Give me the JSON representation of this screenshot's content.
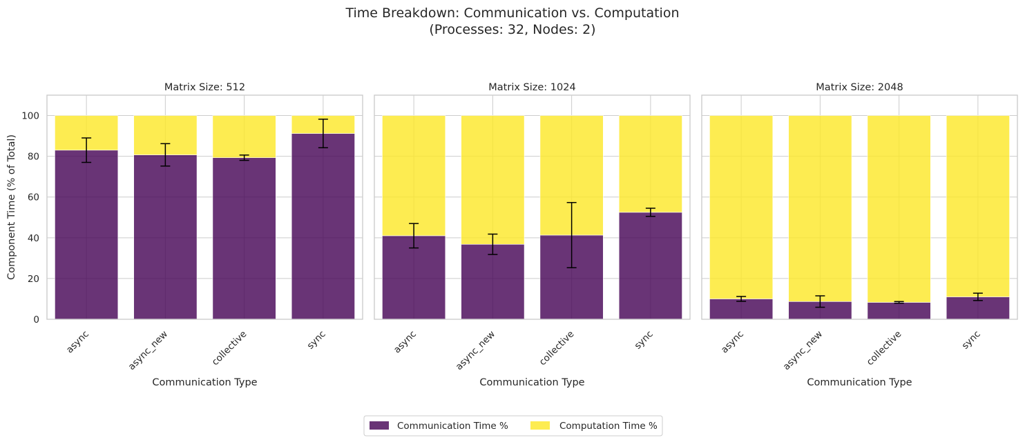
{
  "figure": {
    "title_line1": "Time Breakdown: Communication vs. Computation",
    "title_line2": "(Processes: 32, Nodes: 2)"
  },
  "legend": {
    "placement": "bottom-center",
    "entries": [
      {
        "label": "Communication Time %",
        "color": "#440154"
      },
      {
        "label": "Computation Time %",
        "color": "#fde725"
      }
    ]
  },
  "chart_data": [
    {
      "type": "bar",
      "stacked": true,
      "title": "Matrix Size: 512",
      "xlabel": "Communication Type",
      "ylabel": "Component Time (% of Total)",
      "categories": [
        "async",
        "async_new",
        "collective",
        "sync"
      ],
      "ylim": [
        0,
        110
      ],
      "yticks": [
        0,
        20,
        40,
        60,
        80,
        100
      ],
      "grid": true,
      "series": [
        {
          "name": "Communication Time %",
          "values": [
            83,
            80.7,
            79.3,
            91.2
          ],
          "error": [
            6,
            5.5,
            1.3,
            7
          ]
        },
        {
          "name": "Computation Time %",
          "values": [
            17,
            19.3,
            20.7,
            8.8
          ]
        }
      ]
    },
    {
      "type": "bar",
      "stacked": true,
      "title": "Matrix Size: 1024",
      "xlabel": "Communication Type",
      "ylabel": "",
      "categories": [
        "async",
        "async_new",
        "collective",
        "sync"
      ],
      "ylim": [
        0,
        110
      ],
      "yticks": [
        0,
        20,
        40,
        60,
        80,
        100
      ],
      "grid": true,
      "series": [
        {
          "name": "Communication Time %",
          "values": [
            41,
            36.8,
            41.3,
            52.5
          ],
          "error": [
            6,
            5,
            16,
            2
          ]
        },
        {
          "name": "Computation Time %",
          "values": [
            59,
            63.2,
            58.7,
            47.5
          ]
        }
      ]
    },
    {
      "type": "bar",
      "stacked": true,
      "title": "Matrix Size: 2048",
      "xlabel": "Communication Type",
      "ylabel": "",
      "categories": [
        "async",
        "async_new",
        "collective",
        "sync"
      ],
      "ylim": [
        0,
        110
      ],
      "yticks": [
        0,
        20,
        40,
        60,
        80,
        100
      ],
      "grid": true,
      "series": [
        {
          "name": "Communication Time %",
          "values": [
            10,
            8.7,
            8.3,
            11
          ],
          "error": [
            1.2,
            2.8,
            0.4,
            1.8
          ]
        },
        {
          "name": "Computation Time %",
          "values": [
            90,
            91.3,
            91.7,
            89
          ]
        }
      ]
    }
  ]
}
